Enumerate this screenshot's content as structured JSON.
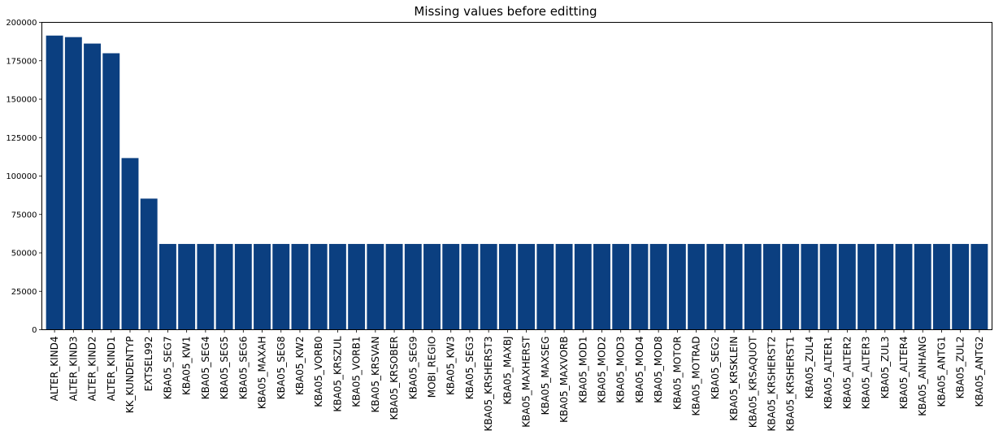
{
  "chart_data": {
    "type": "bar",
    "title": "Missing values before editting",
    "xlabel": "",
    "ylabel": "",
    "ylim": [
      0,
      200000
    ],
    "yticks": [
      0,
      25000,
      50000,
      75000,
      100000,
      125000,
      150000,
      175000,
      200000
    ],
    "grid": false,
    "bar_color": "#0b3f80",
    "categories": [
      "ALTER_KIND4",
      "ALTER_KIND3",
      "ALTER_KIND2",
      "ALTER_KIND1",
      "KK_KUNDENTYP",
      "EXTSEL992",
      "KBA05_SEG7",
      "KBA05_KW1",
      "KBA05_SEG4",
      "KBA05_SEG5",
      "KBA05_SEG6",
      "KBA05_MAXAH",
      "KBA05_SEG8",
      "KBA05_KW2",
      "KBA05_VORB0",
      "KBA05_KRSZUL",
      "KBA05_VORB1",
      "KBA05_KRSVAN",
      "KBA05_KRSOBER",
      "KBA05_SEG9",
      "MOBI_REGIO",
      "KBA05_KW3",
      "KBA05_SEG3",
      "KBA05_KRSHERST3",
      "KBA05_MAXBJ",
      "KBA05_MAXHERST",
      "KBA05_MAXSEG",
      "KBA05_MAXVORB",
      "KBA05_MOD1",
      "KBA05_MOD2",
      "KBA05_MOD3",
      "KBA05_MOD4",
      "KBA05_MOD8",
      "KBA05_MOTOR",
      "KBA05_MOTRAD",
      "KBA05_SEG2",
      "KBA05_KRSKLEIN",
      "KBA05_KRSAQUOT",
      "KBA05_KRSHERST2",
      "KBA05_KRSHERST1",
      "KBA05_ZUL4",
      "KBA05_ALTER1",
      "KBA05_ALTER2",
      "KBA05_ALTER3",
      "KBA05_ZUL3",
      "KBA05_ALTER4",
      "KBA05_ANHANG",
      "KBA05_ANTG1",
      "KBA05_ZUL2",
      "KBA05_ANTG2"
    ],
    "values": [
      191400,
      190400,
      186200,
      179900,
      111700,
      85300,
      55800,
      55800,
      55800,
      55800,
      55800,
      55800,
      55800,
      55800,
      55800,
      55800,
      55800,
      55800,
      55800,
      55800,
      55800,
      55800,
      55800,
      55800,
      55800,
      55800,
      55800,
      55800,
      55800,
      55800,
      55800,
      55800,
      55800,
      55800,
      55800,
      55800,
      55800,
      55800,
      55800,
      55800,
      55800,
      55800,
      55800,
      55800,
      55800,
      55800,
      55800,
      55800,
      55800,
      55800
    ]
  }
}
